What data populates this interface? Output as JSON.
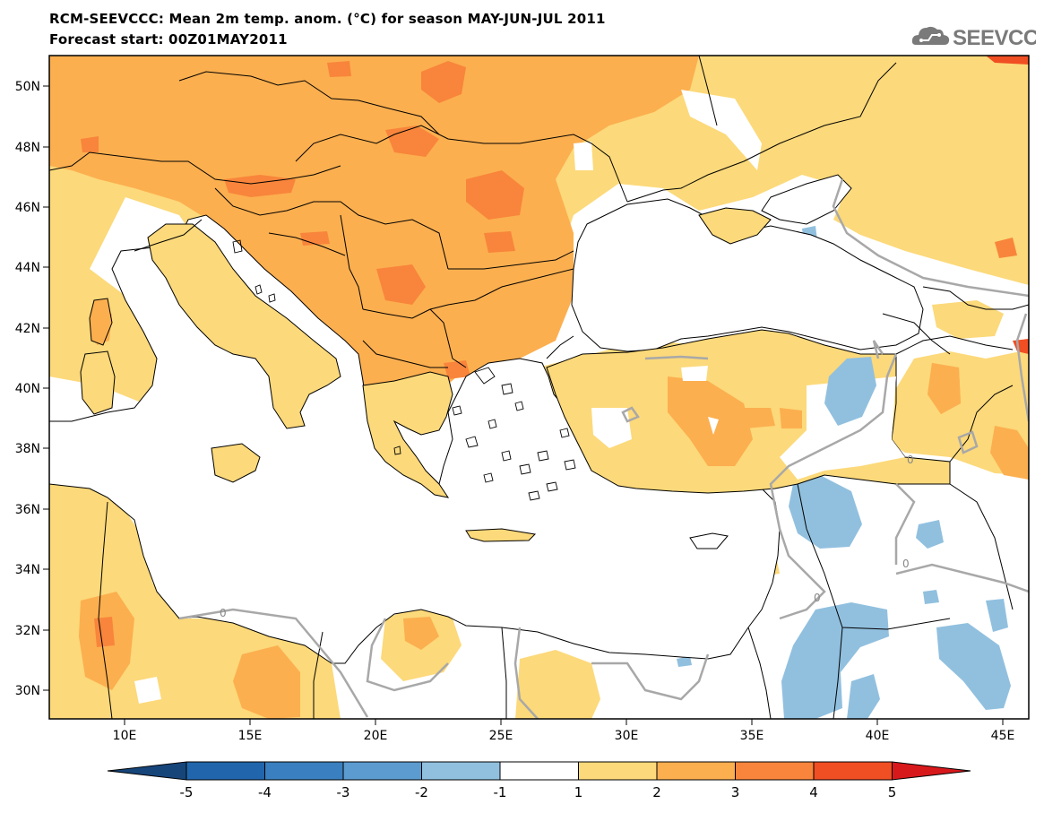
{
  "header": {
    "title_line1": "RCM-SEEVCCC: Mean 2m temp. anom. (°C) for season MAY-JUN-JUL 2011",
    "title_line2": "Forecast start: 00Z01MAY2011",
    "logo_text": "SEEVCCC",
    "logo_icon": "cloud-icon"
  },
  "map": {
    "lat_labels": [
      "50N",
      "48N",
      "46N",
      "44N",
      "42N",
      "40N",
      "38N",
      "36N",
      "34N",
      "32N",
      "30N"
    ],
    "lon_labels": [
      "10E",
      "15E",
      "20E",
      "25E",
      "30E",
      "35E",
      "40E",
      "45E"
    ],
    "contour_labels": [
      "0",
      "0",
      "0",
      "0"
    ]
  },
  "colorbar": {
    "labels": [
      "-5",
      "-4",
      "-3",
      "-2",
      "-1",
      "1",
      "2",
      "3",
      "4",
      "5"
    ],
    "colors": [
      "#2166ac",
      "#3a7fbf",
      "#5b9bd0",
      "#91c0df",
      "#ffffff",
      "#fcd97a",
      "#fcaf4f",
      "#f8853b",
      "#f04e23",
      "#d7191c"
    ],
    "under_color": "#16457a",
    "over_color": "#d7191c"
  }
}
